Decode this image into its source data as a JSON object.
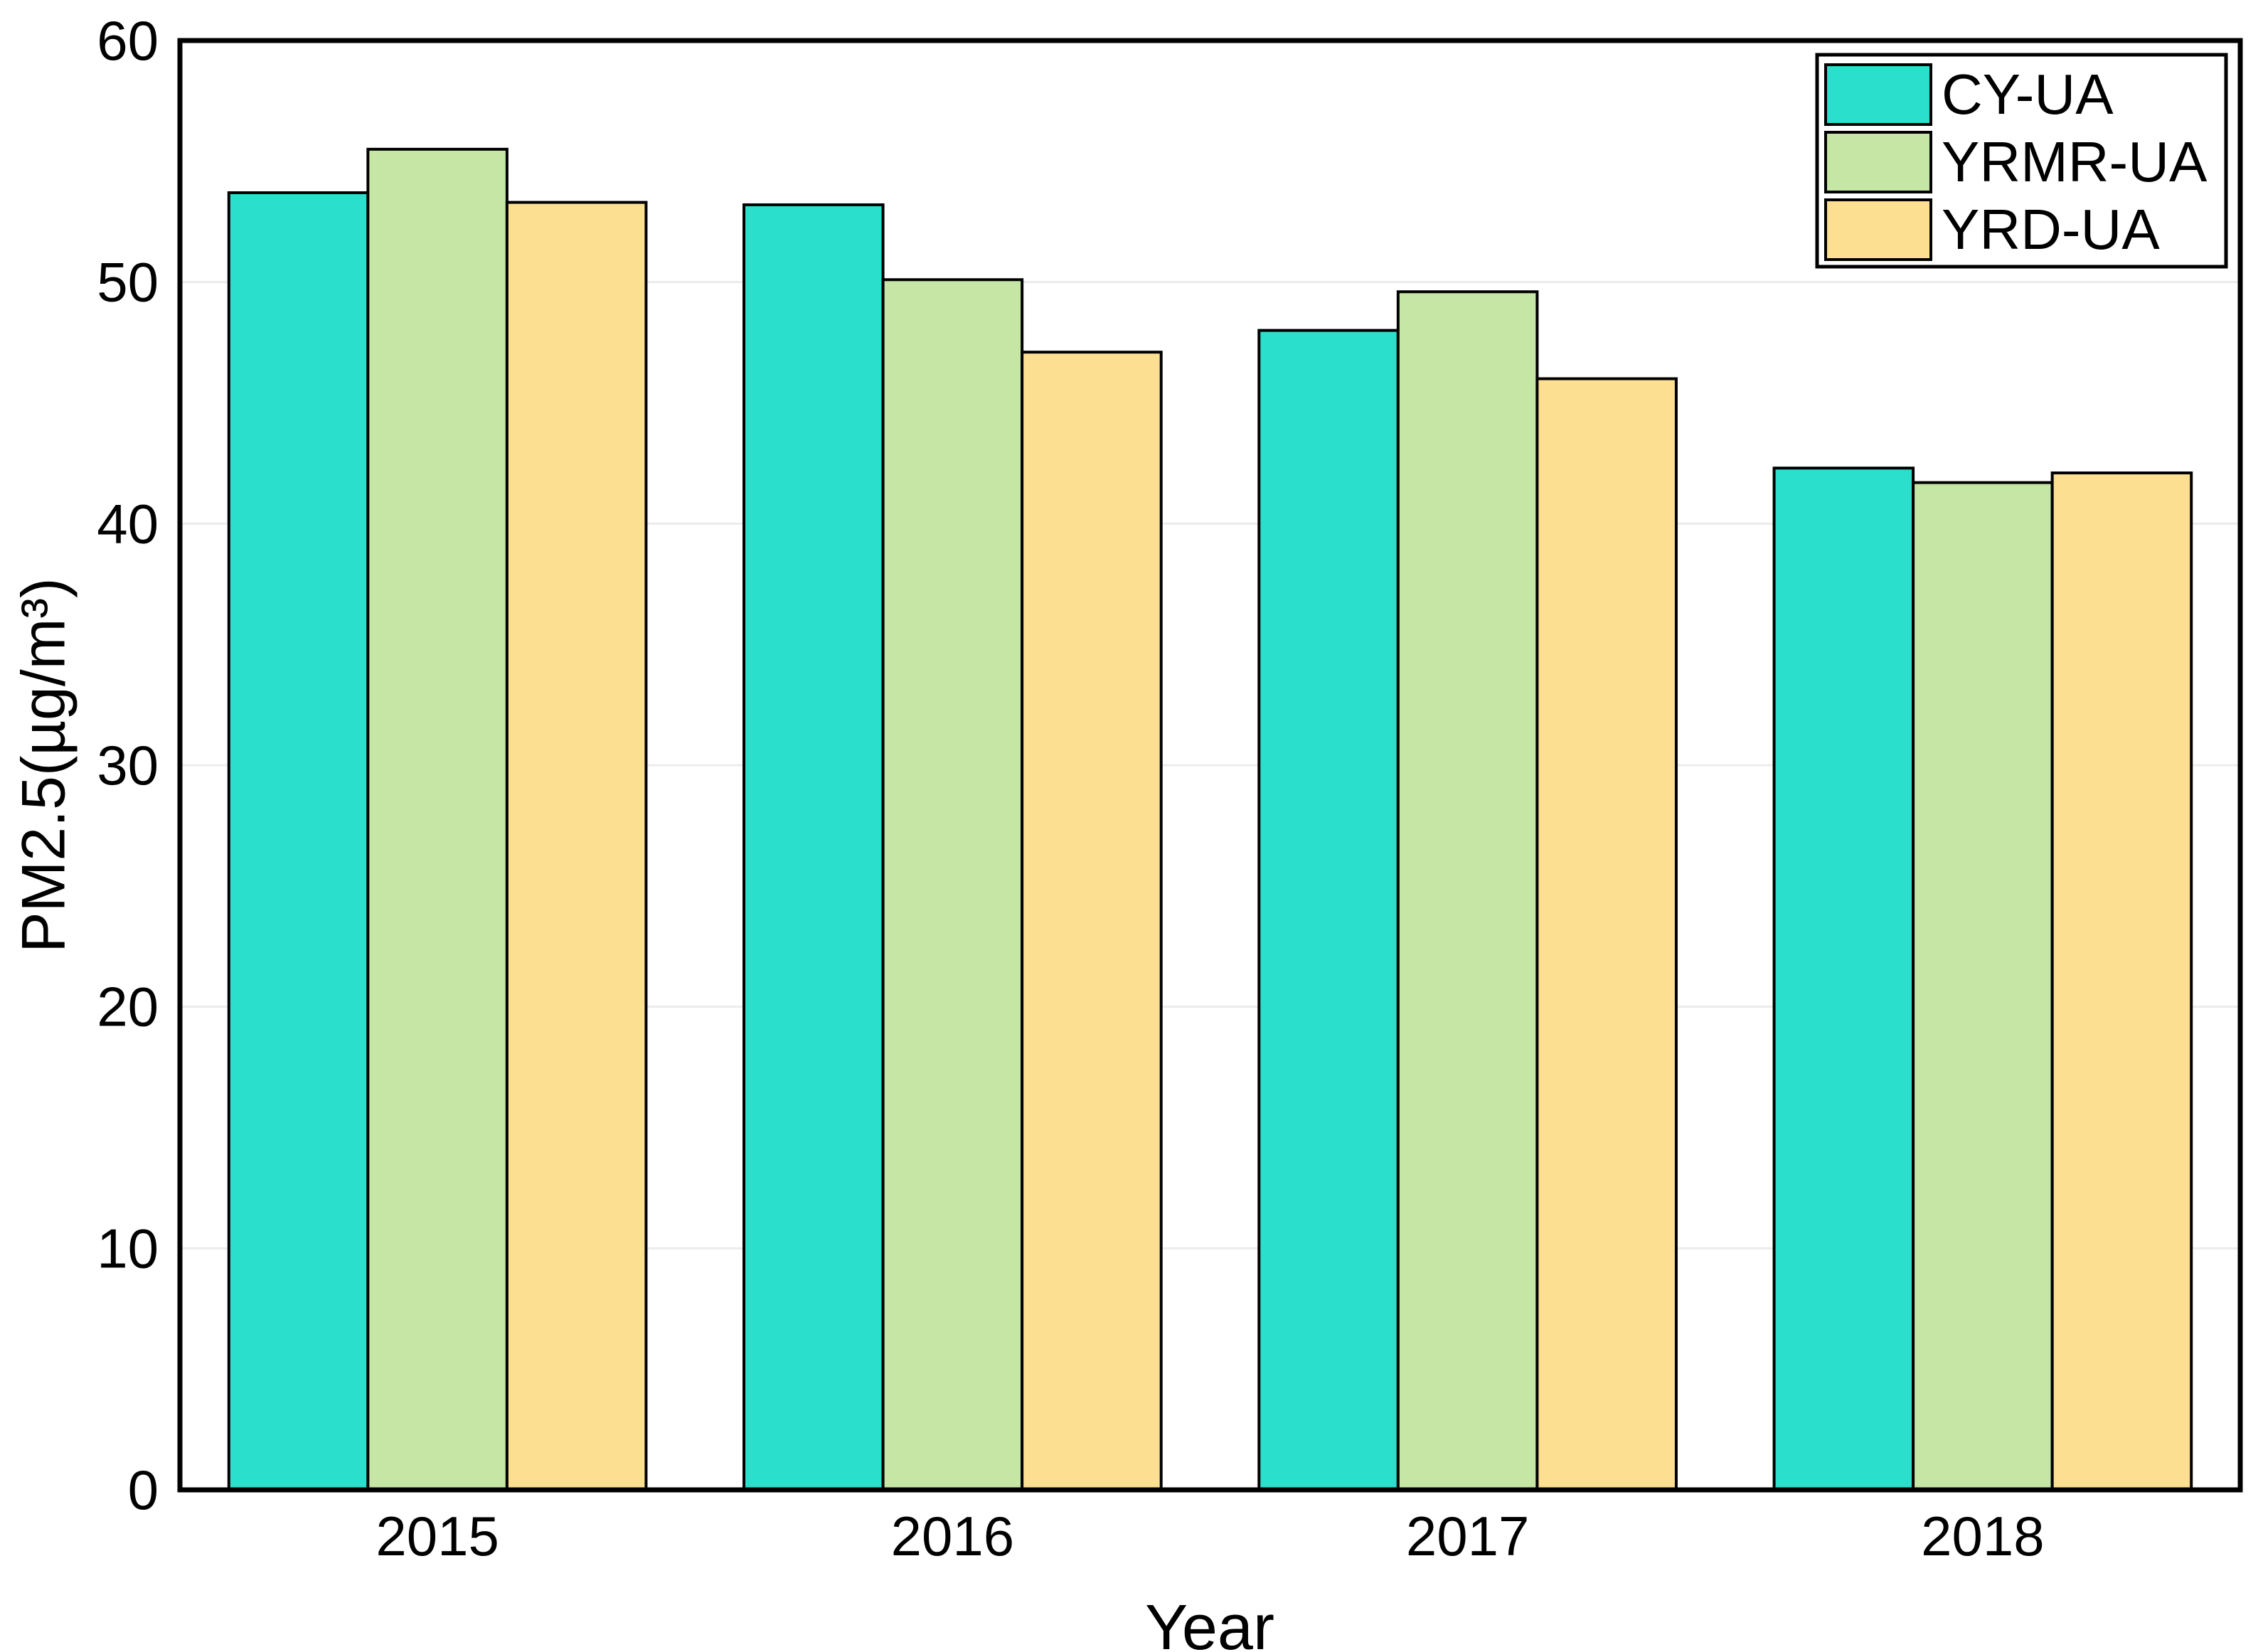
{
  "figure": {
    "background": "#ffffff",
    "frame_color": "#000000",
    "grid_color": "#ececec"
  },
  "chart_data": {
    "type": "bar",
    "title": "",
    "xlabel": "Year",
    "ylabel": "PM2.5(µg/m³)",
    "categories": [
      "2015",
      "2016",
      "2017",
      "2018"
    ],
    "series": [
      {
        "name": "CY-UA",
        "color": "#2AE0CD",
        "values": [
          53.7,
          53.2,
          48.0,
          42.3
        ]
      },
      {
        "name": "YRMR-UA",
        "color": "#C5E6A5",
        "values": [
          55.5,
          50.1,
          49.6,
          41.7
        ]
      },
      {
        "name": "YRD-UA",
        "color": "#FDDF91",
        "values": [
          53.3,
          47.1,
          46.0,
          42.1
        ]
      }
    ],
    "ylim": [
      0,
      60
    ],
    "yticks": [
      0,
      10,
      20,
      30,
      40,
      50,
      60
    ],
    "grid": true,
    "bar_border_color": "#000000",
    "legend_position": "top-right"
  }
}
